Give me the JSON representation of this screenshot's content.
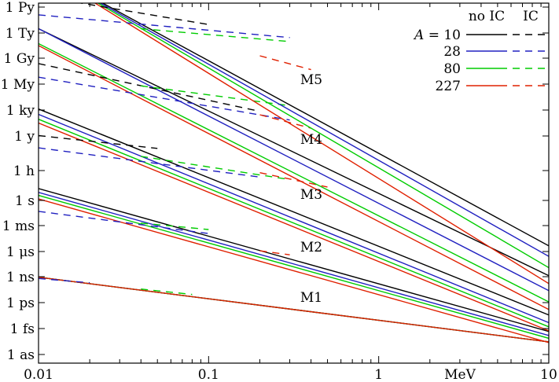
{
  "chart_data": {
    "type": "line",
    "title": "",
    "x_scale": "log",
    "y_scale": "log",
    "xlim": [
      0.01,
      10
    ],
    "x_ticks": [
      {
        "value": 0.01,
        "label": "0.01"
      },
      {
        "value": 0.1,
        "label": "0.1"
      },
      {
        "value": 1,
        "label": "1"
      },
      {
        "value": 10,
        "label": "10"
      }
    ],
    "x_unit_label": "MeV",
    "y_ticks": [
      {
        "value": "1e-18 s",
        "label": "1 as"
      },
      {
        "value": "1e-15 s",
        "label": "1 fs"
      },
      {
        "value": "1e-12 s",
        "label": "1 ps"
      },
      {
        "value": "1e-9 s",
        "label": "1 ns"
      },
      {
        "value": "1e-6 s",
        "label": "1 μs"
      },
      {
        "value": "1e-3 s",
        "label": "1 ms"
      },
      {
        "value": "1 s",
        "label": "1 s"
      },
      {
        "value": "1 h",
        "label": "1 h"
      },
      {
        "value": "1 y",
        "label": "1 y"
      },
      {
        "value": "1e3 y",
        "label": "1 ky"
      },
      {
        "value": "1e6 y",
        "label": "1 My"
      },
      {
        "value": "1e9 y",
        "label": "1 Gy"
      },
      {
        "value": "1e12 y",
        "label": "1 Ty"
      },
      {
        "value": "1e15 y",
        "label": "1 Py"
      }
    ],
    "legend": {
      "position": "top-right",
      "header_no_ic": "no IC",
      "header_ic": "IC",
      "var_label": "A = ",
      "entries": [
        {
          "value": "10",
          "color": "#000000"
        },
        {
          "value": "28",
          "color": "#2020c0"
        },
        {
          "value": "80",
          "color": "#00cc00"
        },
        {
          "value": "227",
          "color": "#e02000"
        }
      ]
    },
    "multipolarity_labels": [
      "M1",
      "M2",
      "M3",
      "M4",
      "M5"
    ],
    "colors": {
      "10": "#000000",
      "28": "#2020c0",
      "80": "#00cc00",
      "227": "#e02000"
    },
    "series": [
      {
        "group": "M1",
        "A": "10",
        "style": "solid",
        "y_at_x0.01": 8.6e-10,
        "y_at_x10": 2.9e-17
      },
      {
        "group": "M1",
        "A": "28",
        "style": "solid",
        "y_at_x0.01": 8.6e-10,
        "y_at_x10": 2.9e-17
      },
      {
        "group": "M1",
        "A": "80",
        "style": "solid",
        "y_at_x0.01": 8.6e-10,
        "y_at_x10": 2.9e-17
      },
      {
        "group": "M1",
        "A": "227",
        "style": "solid",
        "y_at_x0.01": 8.6e-10,
        "y_at_x10": 2.9e-17
      },
      {
        "group": "M1",
        "A": "28",
        "style": "dashed",
        "y_at_x0.01": 6.2e-10,
        "y_at_x0.02": 2e-10
      },
      {
        "group": "M1",
        "A": "80",
        "style": "dashed",
        "y_at_x0.04": 3.7e-11,
        "y_at_x0.08": 8.8e-12
      },
      {
        "group": "M2",
        "A": "10",
        "style": "solid",
        "y_at_x0.01": 26,
        "y_at_x10": 4.6e-16
      },
      {
        "group": "M2",
        "A": "28",
        "style": "solid",
        "y_at_x0.01": 9,
        "y_at_x10": 1.6e-16
      },
      {
        "group": "M2",
        "A": "80",
        "style": "solid",
        "y_at_x0.01": 4,
        "y_at_x10": 7.4e-17
      },
      {
        "group": "M2",
        "A": "227",
        "style": "solid",
        "y_at_x0.01": 1.5,
        "y_at_x10": 2.4e-17
      },
      {
        "group": "M2",
        "A": "28",
        "style": "dashed",
        "y_at_x0.01": 0.05,
        "y_at_x0.1": 0.00012
      },
      {
        "group": "M2",
        "A": "80",
        "style": "dashed",
        "y_at_x0.04": 0.002,
        "y_at_x0.1": 0.00035
      },
      {
        "group": "M2",
        "A": "227",
        "style": "dashed",
        "y_at_x0.2": 1.2e-06,
        "y_at_x0.3": 4e-07
      },
      {
        "group": "M3",
        "A": "10",
        "style": "solid",
        "y_at_x0.01": 41000000000.0,
        "y_at_x10": 3.7e-14
      },
      {
        "group": "M3",
        "A": "28",
        "style": "solid",
        "y_at_x0.01": 10000000000.0,
        "y_at_x10": 4.8e-15
      },
      {
        "group": "M3",
        "A": "80",
        "style": "solid",
        "y_at_x0.01": 2700000000.0,
        "y_at_x10": 1.6e-15
      },
      {
        "group": "M3",
        "A": "227",
        "style": "solid",
        "y_at_x0.01": 1000000000.0,
        "y_at_x10": 5.4e-16
      },
      {
        "group": "M3",
        "A": "10",
        "style": "dashed",
        "y_at_x0.01": 35000000.0,
        "y_at_x0.05": 1200000.0
      },
      {
        "group": "M3",
        "A": "28",
        "style": "dashed",
        "y_at_x0.01": 1400000.0,
        "y_at_x0.2": 600.0
      },
      {
        "group": "M3",
        "A": "80",
        "style": "dashed",
        "y_at_x0.04": 150000.0,
        "y_at_x0.3": 300.0
      },
      {
        "group": "M3",
        "A": "227",
        "style": "dashed",
        "y_at_x0.2": 2000.0,
        "y_at_x0.5": 40.0
      },
      {
        "group": "M4",
        "A": "10",
        "style": "solid",
        "y_at_x0.01": 1e+20,
        "y_at_x10": 1.3e-09
      },
      {
        "group": "M4",
        "A": "28",
        "style": "solid",
        "y_at_x0.01": 1e+20,
        "y_at_x10": 2.4e-11
      },
      {
        "group": "M4",
        "A": "80",
        "style": "solid",
        "y_at_x0.01": 1.7e+18,
        "y_at_x10": 1.2e-12
      },
      {
        "group": "M4",
        "A": "227",
        "style": "solid",
        "y_at_x0.01": 1e+18,
        "y_at_x10": 1.6e-13
      },
      {
        "group": "M4",
        "A": "10",
        "style": "dashed",
        "y_at_x0.01": 7500000000000000.0,
        "y_at_x0.2": 22000000000.0
      },
      {
        "group": "M4",
        "A": "28",
        "style": "dashed",
        "y_at_x0.01": 200000000000000.0,
        "y_at_x0.3": 2200000000.0
      },
      {
        "group": "M4",
        "A": "80",
        "style": "dashed",
        "y_at_x0.04": 20000000000000.0,
        "y_at_x0.3": 100000000000.0
      },
      {
        "group": "M4",
        "A": "227",
        "style": "dashed",
        "y_at_x0.2": 9000000000.0,
        "y_at_x0.4": 250000000.0
      },
      {
        "group": "M5",
        "A": "10",
        "style": "solid",
        "y_at_x0.01": 1e+27,
        "y_at_x10": 4.5e-06
      },
      {
        "group": "M5",
        "A": "28",
        "style": "solid",
        "y_at_x0.01": 1e+27,
        "y_at_x10": 2.6e-07
      },
      {
        "group": "M5",
        "A": "80",
        "style": "solid",
        "y_at_x0.01": 1e+27,
        "y_at_x10": 1.2e-08
      },
      {
        "group": "M5",
        "A": "227",
        "style": "solid",
        "y_at_x0.01": 1e+27,
        "y_at_x10": 1.6e-10
      },
      {
        "group": "M5",
        "A": "10",
        "style": "dashed",
        "y_at_x0.01": 6e+23,
        "y_at_x0.1": 3e+20
      },
      {
        "group": "M5",
        "A": "28",
        "style": "dashed",
        "y_at_x0.01": 4e+21,
        "y_at_x0.3": 9e+18
      },
      {
        "group": "M5",
        "A": "80",
        "style": "dashed",
        "y_at_x0.04": 1e+20,
        "y_at_x0.3": 3e+18
      },
      {
        "group": "M5",
        "A": "227",
        "style": "dashed",
        "y_at_x0.2": 6e+16,
        "y_at_x0.4": 1500000000000000.0
      }
    ]
  }
}
